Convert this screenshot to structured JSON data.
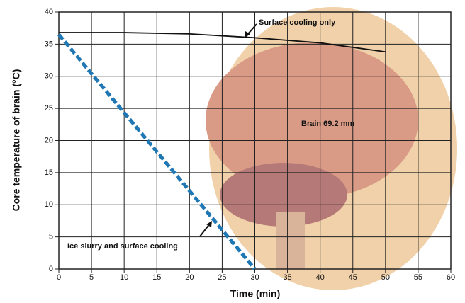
{
  "chart_data": {
    "type": "line",
    "xlabel": "Time (min)",
    "ylabel": "Core temperature of brain (°C)",
    "xlim": [
      0,
      60
    ],
    "xticks": [
      0,
      5,
      10,
      15,
      20,
      25,
      30,
      35,
      40,
      45,
      50,
      55,
      60
    ],
    "ylim": [
      0,
      40
    ],
    "yticks": [
      0,
      5,
      10,
      15,
      20,
      25,
      30,
      35,
      40
    ],
    "grid": true,
    "series": [
      {
        "name": "Surface cooling only",
        "color": "#111111",
        "line_style": "solid",
        "x": [
          0,
          10,
          20,
          30,
          40,
          50
        ],
        "values": [
          36.8,
          36.8,
          36.6,
          36.0,
          35.2,
          33.8
        ]
      },
      {
        "name": "Ice slurry and surface cooling",
        "color": "#1f77b4",
        "line_style": "dashed",
        "x": [
          0,
          30
        ],
        "values": [
          36.5,
          0
        ]
      }
    ],
    "annotations": [
      "Brain 69.2 mm"
    ]
  }
}
